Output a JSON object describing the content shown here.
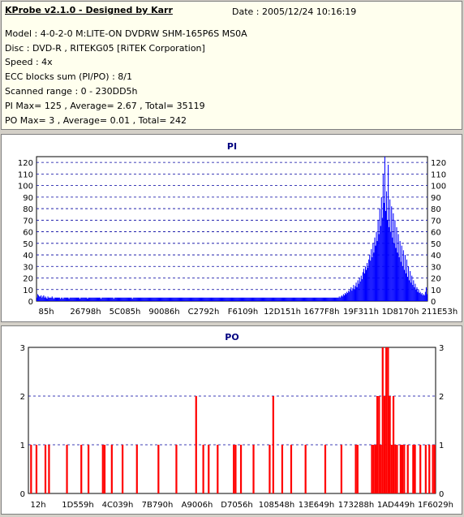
{
  "header": {
    "title": "KProbe v2.1.0 - Designed by Karr",
    "date": "Date : 2005/12/24 10:16:19",
    "model": "Model : 4-0-2-0 M:LITE-ON DVDRW SHM-165P6S MS0A",
    "disc": "Disc : DVD-R , RITEKG05 [RiTEK Corporation]",
    "speed": "Speed : 4x",
    "ecc": "ECC blocks sum (PI/PO) : 8/1",
    "range": "Scanned range : 0 - 230DD5h",
    "pi_summary": "PI Max= 125 , Average= 2.67 , Total= 35119",
    "po_summary": "PO Max= 3 , Average= 0.01 , Total= 242"
  },
  "colors": {
    "pi": "#0000ff",
    "po": "#ff0000",
    "grid": "#0000a0"
  },
  "chart_data": [
    {
      "type": "bar",
      "title": "PI",
      "ylim": [
        0,
        125
      ],
      "yticks": [
        "120",
        "110",
        "100",
        "90",
        "80",
        "70",
        "60",
        "50",
        "40",
        "30",
        "20",
        "10",
        "0"
      ],
      "xticks": [
        "85h",
        "26798h",
        "5C085h",
        "90086h",
        "C2792h",
        "F6109h",
        "12D151h",
        "1677F8h",
        "19F311h",
        "1D8170h",
        "211E53h"
      ],
      "max": 125,
      "average": 2.67,
      "values": [
        3,
        6,
        5,
        4,
        4,
        5,
        3,
        4,
        5,
        3,
        4,
        3,
        2,
        4,
        3,
        3,
        3,
        3,
        4,
        3,
        2,
        3,
        3,
        3,
        3,
        3,
        3,
        3,
        2,
        3,
        3,
        2,
        3,
        3,
        3,
        3,
        3,
        3,
        2,
        3,
        3,
        3,
        3,
        3,
        3,
        3,
        3,
        3,
        3,
        3,
        3,
        2,
        3,
        3,
        3,
        3,
        3,
        3,
        3,
        3,
        2,
        3,
        3,
        3,
        3,
        3,
        3,
        3,
        3,
        3,
        3,
        3,
        3,
        3,
        3,
        3,
        2,
        3,
        3,
        3,
        3,
        3,
        3,
        3,
        3,
        3,
        3,
        3,
        3,
        3,
        3,
        2,
        3,
        3,
        3,
        3,
        3,
        3,
        3,
        3,
        3,
        3,
        3,
        3,
        3,
        3,
        3,
        3,
        3,
        3,
        3,
        3,
        3,
        2,
        3,
        3,
        3,
        3,
        3,
        3,
        3,
        3,
        3,
        3,
        3,
        3,
        3,
        3,
        3,
        3,
        3,
        3,
        3,
        3,
        3,
        3,
        3,
        3,
        3,
        3,
        3,
        3,
        3,
        3,
        3,
        3,
        3,
        3,
        3,
        3,
        3,
        3,
        3,
        3,
        3,
        3,
        3,
        3,
        3,
        3,
        3,
        3,
        3,
        3,
        3,
        3,
        3,
        3,
        3,
        3,
        3,
        3,
        3,
        3,
        3,
        3,
        3,
        3,
        3,
        3,
        3,
        3,
        3,
        3,
        3,
        3,
        3,
        3,
        3,
        3,
        3,
        3,
        3,
        3,
        3,
        3,
        3,
        3,
        3,
        3,
        3,
        3,
        3,
        3,
        3,
        3,
        3,
        3,
        3,
        3,
        3,
        3,
        3,
        3,
        3,
        3,
        3,
        3,
        3,
        3,
        3,
        3,
        3,
        3,
        3,
        3,
        3,
        3,
        3,
        3,
        3,
        3,
        3,
        3,
        3,
        3,
        3,
        3,
        3,
        3,
        3,
        3,
        3,
        3,
        3,
        3,
        3,
        3,
        3,
        3,
        3,
        3,
        3,
        3,
        3,
        3,
        3,
        3,
        3,
        3,
        3,
        3,
        3,
        3,
        3,
        3,
        3,
        3,
        3,
        3,
        3,
        3,
        3,
        3,
        3,
        3,
        3,
        3,
        3,
        3,
        3,
        3,
        3,
        3,
        3,
        3,
        3,
        3,
        3,
        3,
        3,
        3,
        3,
        3,
        3,
        3,
        3,
        3,
        3,
        3,
        3,
        3,
        3,
        3,
        3,
        3,
        3,
        3,
        3,
        3,
        3,
        3,
        3,
        3,
        3,
        3,
        3,
        3,
        3,
        3,
        3,
        3,
        3,
        3,
        3,
        3,
        3,
        3,
        3,
        3,
        3,
        3,
        3,
        3,
        3,
        3,
        3,
        3,
        3,
        3,
        3,
        3,
        3,
        3,
        3,
        3,
        3,
        3,
        3,
        3,
        3,
        3,
        3,
        3,
        3,
        3,
        3,
        3,
        4,
        3,
        4,
        5,
        4,
        6,
        5,
        7,
        6,
        8,
        7,
        9,
        8,
        10,
        12,
        9,
        11,
        14,
        10,
        13,
        16,
        12,
        18,
        15,
        20,
        17,
        22,
        19,
        25,
        28,
        24,
        30,
        27,
        33,
        29,
        36,
        40,
        35,
        45,
        38,
        50,
        42,
        55,
        48,
        60,
        52,
        70,
        58,
        80,
        65,
        90,
        72,
        110,
        85,
        125,
        78,
        95,
        70,
        118,
        64,
        88,
        60,
        82,
        55,
        76,
        50,
        70,
        46,
        64,
        42,
        58,
        38,
        52,
        34,
        48,
        30,
        44,
        27,
        40,
        24,
        36,
        21,
        30,
        18,
        26,
        16,
        22,
        14,
        18,
        12,
        15,
        10,
        12,
        8,
        10,
        7,
        8,
        6,
        7,
        5,
        6,
        5,
        8,
        12,
        6
      ]
    },
    {
      "type": "bar",
      "title": "PO",
      "ylim": [
        0,
        3
      ],
      "yticks": [
        "3",
        "2",
        "1",
        "0"
      ],
      "xticks": [
        "12h",
        "1D559h",
        "4C039h",
        "7B790h",
        "A9006h",
        "D7056h",
        "108548h",
        "13E649h",
        "173288h",
        "1AD449h",
        "1F6029h"
      ],
      "max": 3,
      "average": 0.01,
      "values": [
        0,
        1,
        0,
        0,
        1,
        0,
        0,
        0,
        0,
        1,
        0,
        1,
        0,
        0,
        0,
        0,
        0,
        0,
        0,
        0,
        0,
        1,
        0,
        0,
        0,
        0,
        0,
        0,
        0,
        1,
        0,
        0,
        0,
        1,
        0,
        0,
        0,
        0,
        0,
        0,
        0,
        1,
        1,
        0,
        0,
        0,
        1,
        0,
        0,
        0,
        0,
        0,
        1,
        0,
        0,
        0,
        0,
        0,
        0,
        0,
        1,
        0,
        0,
        0,
        0,
        0,
        0,
        0,
        0,
        0,
        0,
        0,
        1,
        0,
        0,
        0,
        0,
        0,
        0,
        0,
        0,
        0,
        1,
        0,
        0,
        0,
        0,
        0,
        0,
        0,
        0,
        0,
        0,
        2,
        0,
        0,
        0,
        1,
        0,
        0,
        1,
        0,
        0,
        0,
        0,
        1,
        0,
        0,
        0,
        0,
        0,
        0,
        0,
        0,
        1,
        1,
        0,
        0,
        1,
        0,
        0,
        0,
        0,
        0,
        0,
        1,
        0,
        0,
        0,
        0,
        0,
        0,
        0,
        0,
        1,
        0,
        2,
        0,
        0,
        0,
        0,
        1,
        0,
        0,
        0,
        0,
        1,
        0,
        0,
        0,
        0,
        0,
        0,
        0,
        1,
        0,
        0,
        0,
        0,
        0,
        0,
        0,
        0,
        0,
        0,
        1,
        0,
        0,
        0,
        0,
        0,
        0,
        0,
        0,
        1,
        0,
        0,
        0,
        0,
        0,
        0,
        0,
        1,
        1,
        0,
        0,
        0,
        0,
        0,
        0,
        0,
        1,
        1,
        1,
        2,
        2,
        1,
        3,
        2,
        3,
        3,
        2,
        1,
        2,
        1,
        1,
        0,
        1,
        1,
        1,
        0,
        1,
        0,
        0,
        1,
        1,
        0,
        0,
        1,
        0,
        0,
        1,
        0,
        1,
        0,
        1,
        1
      ]
    }
  ]
}
